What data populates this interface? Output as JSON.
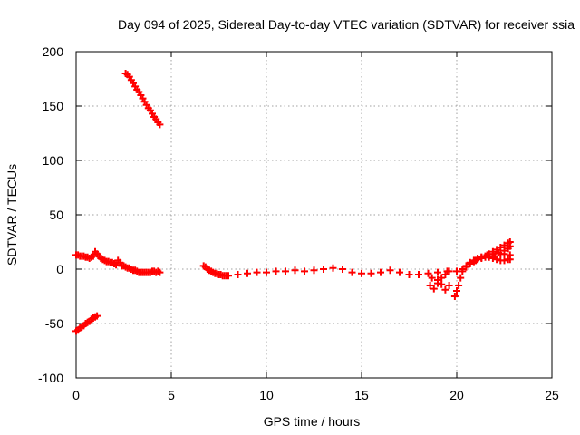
{
  "chart_data": {
    "type": "scatter",
    "title": "Day 094 of 2025, Sidereal Day-to-day VTEC variation (SDTVAR) for receiver ssia",
    "xlabel": "GPS time / hours",
    "ylabel": "SDTVAR / TECUs",
    "xlim": [
      0,
      25
    ],
    "ylim": [
      -100,
      200
    ],
    "xticks": [
      0,
      5,
      10,
      15,
      20,
      25
    ],
    "yticks": [
      -100,
      -50,
      0,
      50,
      100,
      150,
      200
    ],
    "grid": true,
    "marker": "plus",
    "color": "#ff0000",
    "series": [
      {
        "points": [
          [
            0.0,
            -57
          ],
          [
            0.1,
            -56
          ],
          [
            0.2,
            -54
          ],
          [
            0.3,
            -53
          ],
          [
            0.4,
            -52
          ],
          [
            0.5,
            -50
          ],
          [
            0.6,
            -49
          ],
          [
            0.7,
            -48
          ],
          [
            0.8,
            -46
          ],
          [
            0.9,
            -45
          ],
          [
            1.0,
            -44
          ],
          [
            1.1,
            -43
          ],
          [
            2.6,
            180
          ],
          [
            2.7,
            179
          ],
          [
            2.8,
            177
          ],
          [
            2.9,
            174
          ],
          [
            3.0,
            171
          ],
          [
            3.1,
            168
          ],
          [
            3.2,
            165
          ],
          [
            3.3,
            163
          ],
          [
            3.4,
            160
          ],
          [
            3.5,
            157
          ],
          [
            3.6,
            154
          ],
          [
            3.7,
            151
          ],
          [
            3.8,
            148
          ],
          [
            3.9,
            146
          ],
          [
            4.0,
            143
          ],
          [
            4.1,
            140
          ],
          [
            4.2,
            138
          ],
          [
            4.3,
            135
          ],
          [
            4.4,
            133
          ],
          [
            0.0,
            13
          ],
          [
            0.1,
            13
          ],
          [
            0.2,
            12
          ],
          [
            0.3,
            12
          ],
          [
            0.4,
            12
          ],
          [
            0.5,
            11
          ],
          [
            0.6,
            11
          ],
          [
            0.7,
            10
          ],
          [
            0.8,
            11
          ],
          [
            0.9,
            12
          ],
          [
            1.0,
            16
          ],
          [
            1.1,
            14
          ],
          [
            1.2,
            12
          ],
          [
            1.3,
            10
          ],
          [
            1.4,
            9
          ],
          [
            1.5,
            8
          ],
          [
            1.6,
            7
          ],
          [
            1.7,
            7
          ],
          [
            1.8,
            6
          ],
          [
            1.9,
            6
          ],
          [
            2.0,
            5
          ],
          [
            2.1,
            4
          ],
          [
            2.2,
            8
          ],
          [
            2.3,
            6
          ],
          [
            2.4,
            3
          ],
          [
            2.5,
            3
          ],
          [
            2.6,
            2
          ],
          [
            2.7,
            1
          ],
          [
            2.8,
            1
          ],
          [
            2.9,
            0
          ],
          [
            3.0,
            -1
          ],
          [
            3.1,
            -1
          ],
          [
            3.2,
            -2
          ],
          [
            3.3,
            -3
          ],
          [
            3.4,
            -3
          ],
          [
            3.5,
            -3
          ],
          [
            3.6,
            -3
          ],
          [
            3.7,
            -3
          ],
          [
            3.8,
            -3
          ],
          [
            3.9,
            -3
          ],
          [
            4.0,
            -2
          ],
          [
            4.1,
            -2
          ],
          [
            4.2,
            -3
          ],
          [
            4.3,
            -2
          ],
          [
            4.4,
            -3
          ],
          [
            6.7,
            3
          ],
          [
            6.8,
            2
          ],
          [
            6.9,
            0
          ],
          [
            7.0,
            -1
          ],
          [
            7.1,
            -2
          ],
          [
            7.2,
            -3
          ],
          [
            7.3,
            -4
          ],
          [
            7.4,
            -4
          ],
          [
            7.5,
            -5
          ],
          [
            7.6,
            -5
          ],
          [
            7.7,
            -6
          ],
          [
            7.8,
            -6
          ],
          [
            7.9,
            -6
          ],
          [
            8.0,
            -6
          ],
          [
            8.5,
            -5
          ],
          [
            9.0,
            -4
          ],
          [
            9.5,
            -3
          ],
          [
            10.0,
            -3
          ],
          [
            10.5,
            -2
          ],
          [
            11.0,
            -2
          ],
          [
            11.5,
            -1
          ],
          [
            12.0,
            -2
          ],
          [
            12.5,
            -1
          ],
          [
            13.0,
            0
          ],
          [
            13.5,
            1
          ],
          [
            14.0,
            0
          ],
          [
            14.5,
            -3
          ],
          [
            15.0,
            -4
          ],
          [
            15.5,
            -4
          ],
          [
            16.0,
            -3
          ],
          [
            16.5,
            -1
          ],
          [
            17.0,
            -3
          ],
          [
            17.5,
            -5
          ],
          [
            18.0,
            -5
          ],
          [
            18.5,
            -4
          ],
          [
            19.0,
            -3
          ],
          [
            19.5,
            -2
          ],
          [
            20.0,
            -2
          ],
          [
            18.6,
            -15
          ],
          [
            18.8,
            -18
          ],
          [
            19.0,
            -13
          ],
          [
            19.2,
            -8
          ],
          [
            19.4,
            -5
          ],
          [
            19.6,
            -2
          ],
          [
            18.7,
            -8
          ],
          [
            19.0,
            -10
          ],
          [
            19.2,
            -14
          ],
          [
            19.4,
            -19
          ],
          [
            19.6,
            -15
          ],
          [
            19.9,
            -25
          ],
          [
            20.0,
            -20
          ],
          [
            20.1,
            -15
          ],
          [
            20.2,
            -8
          ],
          [
            20.3,
            -2
          ],
          [
            20.5,
            3
          ],
          [
            20.7,
            6
          ],
          [
            20.9,
            8
          ],
          [
            21.1,
            10
          ],
          [
            21.3,
            10
          ],
          [
            21.5,
            11
          ],
          [
            21.7,
            11
          ],
          [
            21.9,
            10
          ],
          [
            22.1,
            9
          ],
          [
            22.3,
            8
          ],
          [
            22.5,
            8
          ],
          [
            22.7,
            9
          ],
          [
            22.8,
            9
          ],
          [
            20.3,
            0
          ],
          [
            20.5,
            2
          ],
          [
            20.7,
            5
          ],
          [
            20.9,
            7
          ],
          [
            21.1,
            9
          ],
          [
            21.3,
            11
          ],
          [
            21.5,
            12
          ],
          [
            21.7,
            14
          ],
          [
            21.9,
            16
          ],
          [
            22.1,
            18
          ],
          [
            22.3,
            20
          ],
          [
            22.5,
            22
          ],
          [
            22.7,
            24
          ],
          [
            22.8,
            25
          ],
          [
            21.0,
            8
          ],
          [
            21.3,
            11
          ],
          [
            21.6,
            13
          ],
          [
            21.9,
            14
          ],
          [
            22.2,
            15
          ],
          [
            22.5,
            14
          ],
          [
            22.8,
            13
          ],
          [
            22.0,
            12
          ],
          [
            22.3,
            14
          ],
          [
            22.5,
            17
          ],
          [
            22.7,
            19
          ],
          [
            22.8,
            21
          ]
        ]
      }
    ]
  }
}
